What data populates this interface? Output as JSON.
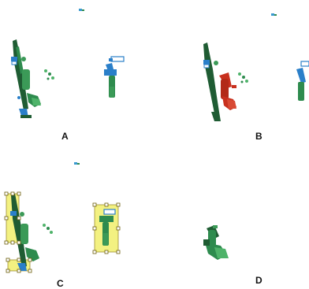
{
  "panels": [
    {
      "label": "A",
      "description_color": "#2a8c4a"
    },
    {
      "label": "B",
      "highlight_color": "#c8301e"
    },
    {
      "label": "C",
      "selection_color": "#f4f06a"
    },
    {
      "label": "D"
    }
  ],
  "colors": {
    "object_green": "#2e8b4e",
    "object_dark": "#1f5c33",
    "object_blue": "#2a7fc9",
    "highlight_red": "#c8301e",
    "selection_yellow": "#f2ef6c",
    "handle_outline": "#8a7a10"
  }
}
